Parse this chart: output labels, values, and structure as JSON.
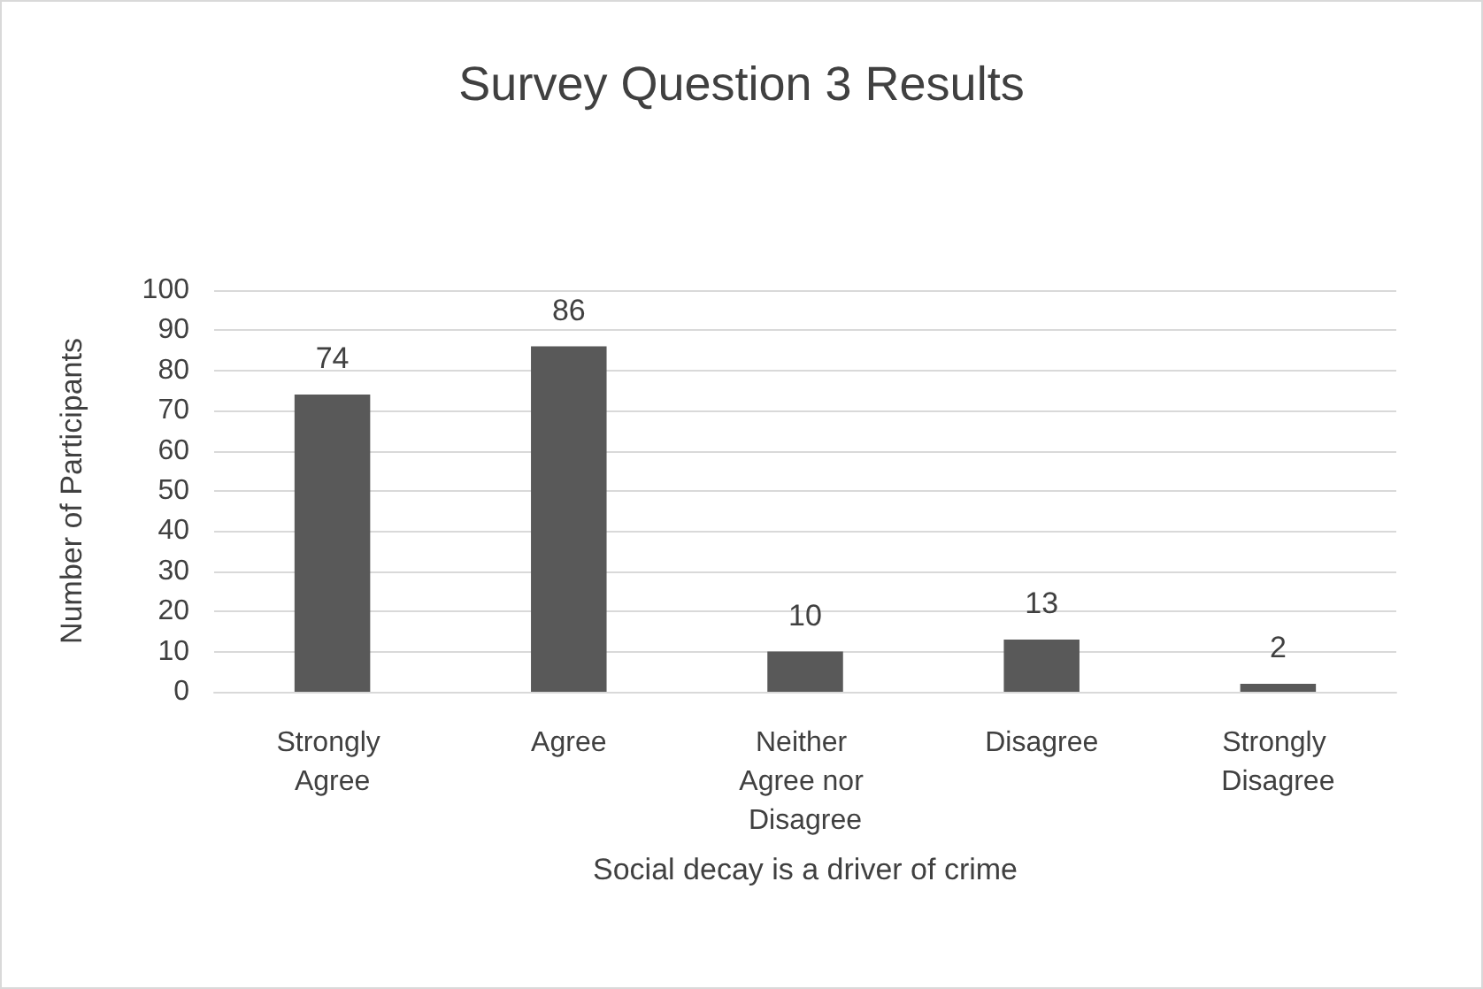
{
  "chart_data": {
    "type": "bar",
    "title": "Survey Question 3 Results",
    "xlabel": "Social decay is a driver of crime",
    "ylabel": "Number of Participants",
    "categories": [
      "Strongly Agree",
      "Agree",
      "Neither Agree nor Disagree",
      "Disagree",
      "Strongly Disagree"
    ],
    "values": [
      74,
      86,
      10,
      13,
      2
    ],
    "color": "#595959",
    "ylim": [
      0,
      100
    ],
    "yticks": [
      0,
      10,
      20,
      30,
      40,
      50,
      60,
      70,
      80,
      90,
      100
    ],
    "grid": "y",
    "data_labels": true
  }
}
